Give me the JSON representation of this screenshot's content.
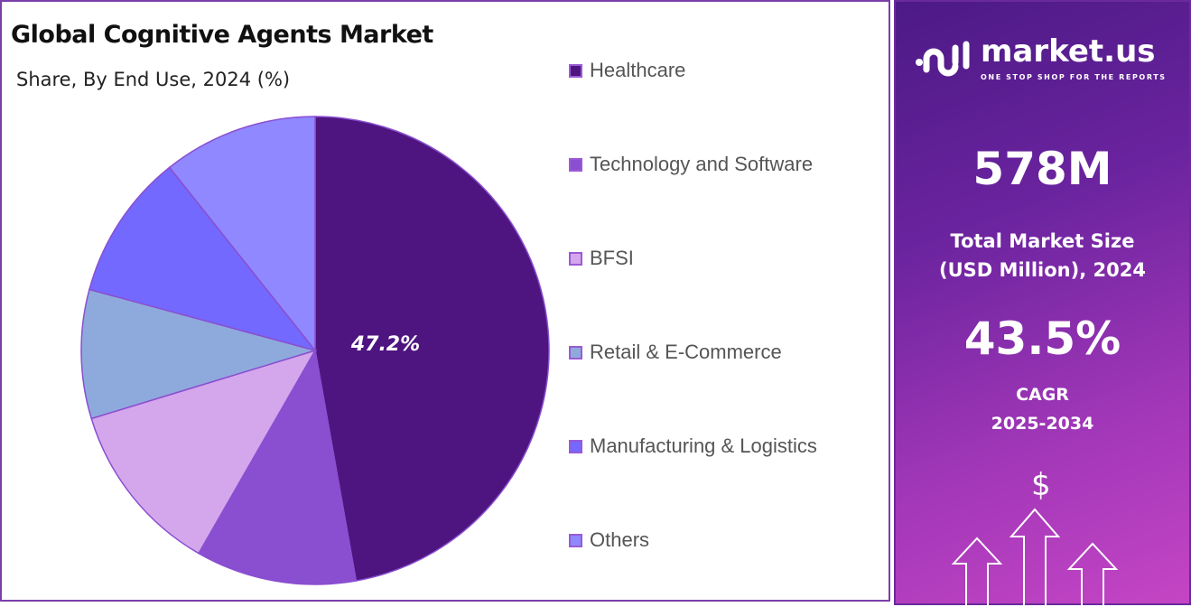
{
  "chart_data": {
    "type": "pie",
    "title": "Global Cognitive Agents Market",
    "subtitle": "Share, By End Use, 2024 (%)",
    "categories": [
      "Healthcare",
      "Technology and Software",
      "BFSI",
      "Retail & E-Commerce",
      "Manufacturing & Logistics",
      "Others"
    ],
    "values": [
      47.2,
      11.1,
      12.0,
      8.9,
      10.1,
      10.7
    ],
    "colors": [
      "#4e1580",
      "#8a4fd0",
      "#d4a7ec",
      "#8eaadc",
      "#7369ff",
      "#8f88ff"
    ],
    "data_labels": [
      "47.2%"
    ],
    "legend_placement": "right"
  },
  "panel": {
    "brand": "market.us",
    "tagline": "ONE STOP SHOP FOR THE REPORTS",
    "market_size": "578M",
    "market_size_label_1": "Total Market Size",
    "market_size_label_2": "(USD Million), 2024",
    "cagr": "43.5%",
    "cagr_label_1": "CAGR",
    "cagr_label_2": "2025-2034",
    "dollar": "$"
  }
}
